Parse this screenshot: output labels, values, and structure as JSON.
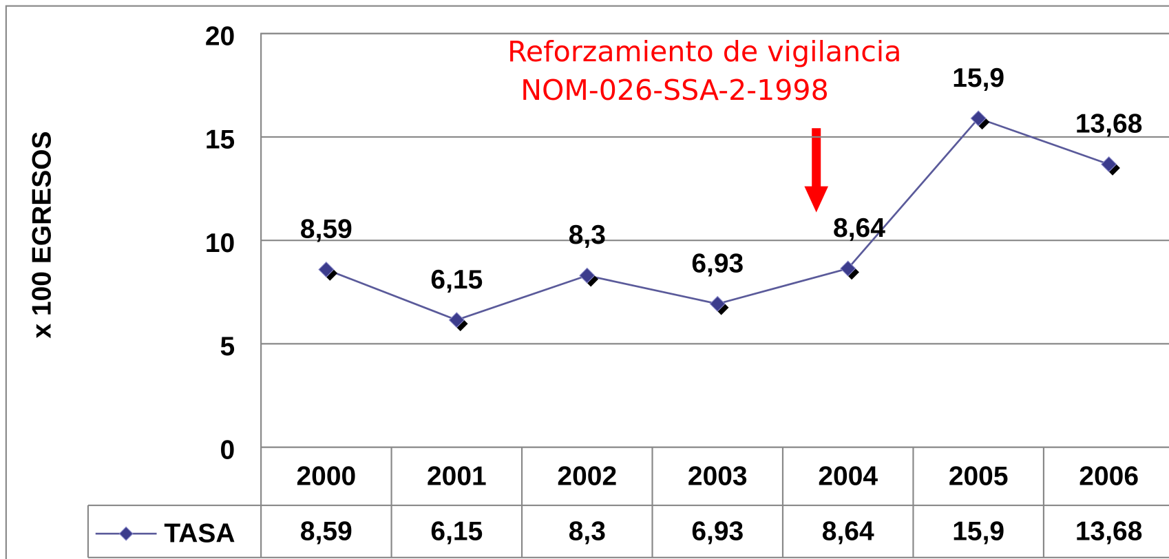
{
  "chart_data": {
    "type": "line",
    "y_label": "x 100 EGRESOS",
    "annotation": [
      "Reforzamiento de vigilancia",
      "NOM-026-SSA-2-1998"
    ],
    "categories": [
      "2000",
      "2001",
      "2002",
      "2003",
      "2004",
      "2005",
      "2006"
    ],
    "series": [
      {
        "name": "TASA",
        "color": "#5a5a9a",
        "values": [
          8.59,
          6.15,
          8.3,
          6.93,
          8.64,
          15.9,
          13.68
        ],
        "value_labels": [
          "8,59",
          "6,15",
          "8,3",
          "6,93",
          "8,64",
          "15,9",
          "13,68"
        ]
      }
    ],
    "ylim": [
      0,
      20
    ],
    "yticks": [
      0,
      5,
      10,
      15,
      20
    ],
    "grid": true
  }
}
